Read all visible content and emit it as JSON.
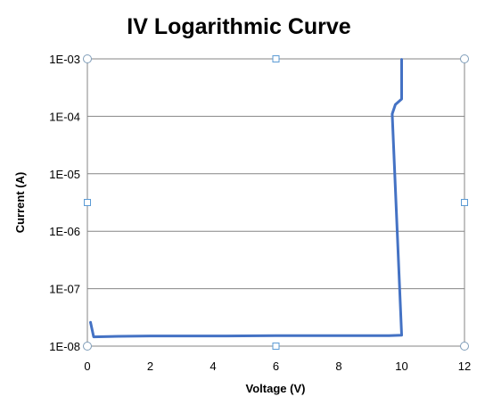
{
  "chart_data": {
    "type": "line",
    "title": "IV Logarithmic Curve",
    "xlabel": "Voltage (V)",
    "ylabel": "Current (A)",
    "xlim": [
      0,
      12
    ],
    "ylim": [
      1e-08,
      0.001
    ],
    "yscale": "log",
    "xticks": [
      0,
      2,
      4,
      6,
      8,
      10,
      12
    ],
    "xtick_labels": [
      "0",
      "2",
      "4",
      "6",
      "8",
      "10",
      "12"
    ],
    "yticks": [
      1e-08,
      1e-07,
      1e-06,
      1e-05,
      0.0001,
      0.001
    ],
    "ytick_labels": [
      "1E-08",
      "1E-07",
      "1E-06",
      "1E-05",
      "1E-04",
      "1E-03"
    ],
    "grid": true,
    "legend": "none",
    "series": [
      {
        "color": "#4472c4",
        "x": [
          0.1,
          0.2,
          1,
          2,
          4,
          6,
          8,
          9.6,
          10.0,
          9.7,
          9.8,
          10.0,
          10.0
        ],
        "y": [
          2.6e-08,
          1.45e-08,
          1.48e-08,
          1.5e-08,
          1.5e-08,
          1.52e-08,
          1.52e-08,
          1.52e-08,
          1.55e-08,
          0.00011,
          0.00016,
          0.0002,
          0.00098
        ]
      }
    ]
  }
}
